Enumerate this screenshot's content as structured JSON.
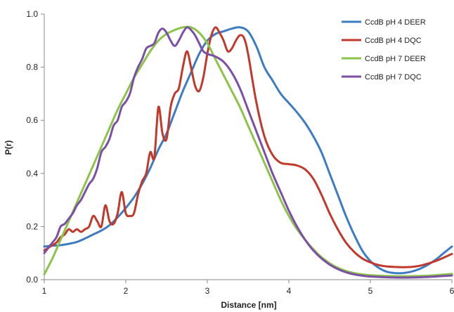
{
  "chart_data": {
    "type": "line",
    "title": "",
    "xlabel": "Distance [nm]",
    "ylabel": "P(r)",
    "xlim": [
      1,
      6
    ],
    "ylim": [
      0,
      1.0
    ],
    "x_ticks": [
      "1",
      "2",
      "3",
      "4",
      "5",
      "6"
    ],
    "y_ticks": [
      "0.0",
      "0.2",
      "0.4",
      "0.6",
      "0.8",
      "1.0"
    ],
    "grid": false,
    "legend_position": "top-right",
    "series": [
      {
        "name": "CcdB pH 4 DEER",
        "color": "#3d7cc4",
        "points": [
          [
            1.0,
            0.125
          ],
          [
            1.1,
            0.128
          ],
          [
            1.2,
            0.13
          ],
          [
            1.3,
            0.135
          ],
          [
            1.4,
            0.142
          ],
          [
            1.5,
            0.155
          ],
          [
            1.6,
            0.17
          ],
          [
            1.7,
            0.185
          ],
          [
            1.8,
            0.205
          ],
          [
            1.9,
            0.235
          ],
          [
            2.0,
            0.27
          ],
          [
            2.1,
            0.31
          ],
          [
            2.2,
            0.36
          ],
          [
            2.3,
            0.42
          ],
          [
            2.4,
            0.49
          ],
          [
            2.5,
            0.55
          ],
          [
            2.6,
            0.63
          ],
          [
            2.7,
            0.71
          ],
          [
            2.8,
            0.78
          ],
          [
            2.9,
            0.85
          ],
          [
            3.0,
            0.9
          ],
          [
            3.1,
            0.925
          ],
          [
            3.2,
            0.935
          ],
          [
            3.3,
            0.945
          ],
          [
            3.4,
            0.95
          ],
          [
            3.5,
            0.935
          ],
          [
            3.6,
            0.88
          ],
          [
            3.7,
            0.8
          ],
          [
            3.8,
            0.75
          ],
          [
            3.9,
            0.7
          ],
          [
            4.0,
            0.665
          ],
          [
            4.1,
            0.63
          ],
          [
            4.2,
            0.59
          ],
          [
            4.3,
            0.54
          ],
          [
            4.4,
            0.48
          ],
          [
            4.5,
            0.4
          ],
          [
            4.6,
            0.32
          ],
          [
            4.7,
            0.24
          ],
          [
            4.8,
            0.17
          ],
          [
            4.9,
            0.11
          ],
          [
            5.0,
            0.07
          ],
          [
            5.1,
            0.045
          ],
          [
            5.2,
            0.03
          ],
          [
            5.3,
            0.025
          ],
          [
            5.4,
            0.025
          ],
          [
            5.5,
            0.03
          ],
          [
            5.6,
            0.04
          ],
          [
            5.7,
            0.055
          ],
          [
            5.8,
            0.075
          ],
          [
            5.9,
            0.1
          ],
          [
            6.0,
            0.125
          ]
        ]
      },
      {
        "name": "CcdB pH 4 DQC",
        "color": "#c0392b",
        "points": [
          [
            1.0,
            0.11
          ],
          [
            1.05,
            0.12
          ],
          [
            1.1,
            0.13
          ],
          [
            1.15,
            0.14
          ],
          [
            1.2,
            0.16
          ],
          [
            1.25,
            0.17
          ],
          [
            1.3,
            0.19
          ],
          [
            1.35,
            0.18
          ],
          [
            1.4,
            0.19
          ],
          [
            1.45,
            0.18
          ],
          [
            1.5,
            0.19
          ],
          [
            1.55,
            0.2
          ],
          [
            1.6,
            0.24
          ],
          [
            1.65,
            0.22
          ],
          [
            1.7,
            0.2
          ],
          [
            1.75,
            0.28
          ],
          [
            1.8,
            0.22
          ],
          [
            1.85,
            0.21
          ],
          [
            1.9,
            0.25
          ],
          [
            1.95,
            0.33
          ],
          [
            2.0,
            0.25
          ],
          [
            2.05,
            0.24
          ],
          [
            2.1,
            0.25
          ],
          [
            2.15,
            0.32
          ],
          [
            2.2,
            0.37
          ],
          [
            2.25,
            0.4
          ],
          [
            2.3,
            0.48
          ],
          [
            2.35,
            0.46
          ],
          [
            2.4,
            0.65
          ],
          [
            2.45,
            0.55
          ],
          [
            2.5,
            0.53
          ],
          [
            2.55,
            0.65
          ],
          [
            2.6,
            0.7
          ],
          [
            2.65,
            0.72
          ],
          [
            2.7,
            0.8
          ],
          [
            2.75,
            0.86
          ],
          [
            2.8,
            0.8
          ],
          [
            2.85,
            0.73
          ],
          [
            2.9,
            0.71
          ],
          [
            2.95,
            0.76
          ],
          [
            3.0,
            0.85
          ],
          [
            3.05,
            0.92
          ],
          [
            3.1,
            0.95
          ],
          [
            3.15,
            0.93
          ],
          [
            3.2,
            0.9
          ],
          [
            3.25,
            0.86
          ],
          [
            3.3,
            0.87
          ],
          [
            3.35,
            0.9
          ],
          [
            3.4,
            0.92
          ],
          [
            3.45,
            0.91
          ],
          [
            3.5,
            0.85
          ],
          [
            3.6,
            0.67
          ],
          [
            3.7,
            0.54
          ],
          [
            3.8,
            0.47
          ],
          [
            3.9,
            0.44
          ],
          [
            4.0,
            0.435
          ],
          [
            4.1,
            0.43
          ],
          [
            4.2,
            0.415
          ],
          [
            4.3,
            0.38
          ],
          [
            4.4,
            0.32
          ],
          [
            4.5,
            0.25
          ],
          [
            4.6,
            0.19
          ],
          [
            4.7,
            0.14
          ],
          [
            4.8,
            0.105
          ],
          [
            4.9,
            0.08
          ],
          [
            5.0,
            0.065
          ],
          [
            5.1,
            0.055
          ],
          [
            5.2,
            0.05
          ],
          [
            5.3,
            0.048
          ],
          [
            5.4,
            0.047
          ],
          [
            5.5,
            0.048
          ],
          [
            5.6,
            0.052
          ],
          [
            5.7,
            0.06
          ],
          [
            5.8,
            0.07
          ],
          [
            5.9,
            0.083
          ],
          [
            6.0,
            0.097
          ]
        ]
      },
      {
        "name": "CcdB pH 7 DEER",
        "color": "#8cc44a",
        "points": [
          [
            1.0,
            0.02
          ],
          [
            1.1,
            0.08
          ],
          [
            1.2,
            0.15
          ],
          [
            1.3,
            0.22
          ],
          [
            1.4,
            0.29
          ],
          [
            1.5,
            0.36
          ],
          [
            1.6,
            0.43
          ],
          [
            1.7,
            0.5
          ],
          [
            1.8,
            0.57
          ],
          [
            1.9,
            0.64
          ],
          [
            2.0,
            0.7
          ],
          [
            2.1,
            0.76
          ],
          [
            2.2,
            0.81
          ],
          [
            2.3,
            0.86
          ],
          [
            2.4,
            0.9
          ],
          [
            2.5,
            0.925
          ],
          [
            2.6,
            0.94
          ],
          [
            2.7,
            0.95
          ],
          [
            2.8,
            0.95
          ],
          [
            2.9,
            0.93
          ],
          [
            3.0,
            0.89
          ],
          [
            3.1,
            0.83
          ],
          [
            3.2,
            0.77
          ],
          [
            3.3,
            0.71
          ],
          [
            3.4,
            0.65
          ],
          [
            3.5,
            0.58
          ],
          [
            3.6,
            0.51
          ],
          [
            3.7,
            0.44
          ],
          [
            3.8,
            0.37
          ],
          [
            3.9,
            0.3
          ],
          [
            4.0,
            0.24
          ],
          [
            4.1,
            0.19
          ],
          [
            4.2,
            0.15
          ],
          [
            4.3,
            0.115
          ],
          [
            4.4,
            0.085
          ],
          [
            4.5,
            0.062
          ],
          [
            4.6,
            0.045
          ],
          [
            4.7,
            0.033
          ],
          [
            4.8,
            0.025
          ],
          [
            4.9,
            0.02
          ],
          [
            5.0,
            0.017
          ],
          [
            5.2,
            0.014
          ],
          [
            5.4,
            0.013
          ],
          [
            5.6,
            0.014
          ],
          [
            5.8,
            0.017
          ],
          [
            6.0,
            0.022
          ]
        ]
      },
      {
        "name": "CcdB pH 7 DQC",
        "color": "#7b4fa6",
        "points": [
          [
            1.0,
            0.1
          ],
          [
            1.05,
            0.12
          ],
          [
            1.1,
            0.14
          ],
          [
            1.15,
            0.16
          ],
          [
            1.2,
            0.2
          ],
          [
            1.25,
            0.21
          ],
          [
            1.3,
            0.23
          ],
          [
            1.35,
            0.25
          ],
          [
            1.4,
            0.28
          ],
          [
            1.45,
            0.3
          ],
          [
            1.5,
            0.33
          ],
          [
            1.55,
            0.36
          ],
          [
            1.6,
            0.38
          ],
          [
            1.65,
            0.42
          ],
          [
            1.7,
            0.48
          ],
          [
            1.75,
            0.5
          ],
          [
            1.8,
            0.53
          ],
          [
            1.85,
            0.58
          ],
          [
            1.9,
            0.6
          ],
          [
            1.95,
            0.65
          ],
          [
            2.0,
            0.67
          ],
          [
            2.05,
            0.7
          ],
          [
            2.1,
            0.76
          ],
          [
            2.15,
            0.8
          ],
          [
            2.2,
            0.83
          ],
          [
            2.25,
            0.87
          ],
          [
            2.3,
            0.88
          ],
          [
            2.35,
            0.89
          ],
          [
            2.4,
            0.93
          ],
          [
            2.45,
            0.945
          ],
          [
            2.5,
            0.93
          ],
          [
            2.55,
            0.9
          ],
          [
            2.6,
            0.88
          ],
          [
            2.65,
            0.9
          ],
          [
            2.7,
            0.93
          ],
          [
            2.75,
            0.95
          ],
          [
            2.8,
            0.94
          ],
          [
            2.85,
            0.92
          ],
          [
            2.9,
            0.89
          ],
          [
            2.95,
            0.86
          ],
          [
            3.0,
            0.85
          ],
          [
            3.1,
            0.84
          ],
          [
            3.2,
            0.82
          ],
          [
            3.3,
            0.78
          ],
          [
            3.4,
            0.72
          ],
          [
            3.5,
            0.64
          ],
          [
            3.6,
            0.56
          ],
          [
            3.7,
            0.48
          ],
          [
            3.8,
            0.4
          ],
          [
            3.9,
            0.33
          ],
          [
            4.0,
            0.26
          ],
          [
            4.1,
            0.2
          ],
          [
            4.2,
            0.15
          ],
          [
            4.3,
            0.11
          ],
          [
            4.4,
            0.08
          ],
          [
            4.5,
            0.057
          ],
          [
            4.6,
            0.04
          ],
          [
            4.7,
            0.028
          ],
          [
            4.8,
            0.02
          ],
          [
            4.9,
            0.015
          ],
          [
            5.0,
            0.012
          ],
          [
            5.2,
            0.009
          ],
          [
            5.4,
            0.008
          ],
          [
            5.6,
            0.009
          ],
          [
            5.8,
            0.012
          ],
          [
            6.0,
            0.016
          ]
        ]
      }
    ]
  }
}
